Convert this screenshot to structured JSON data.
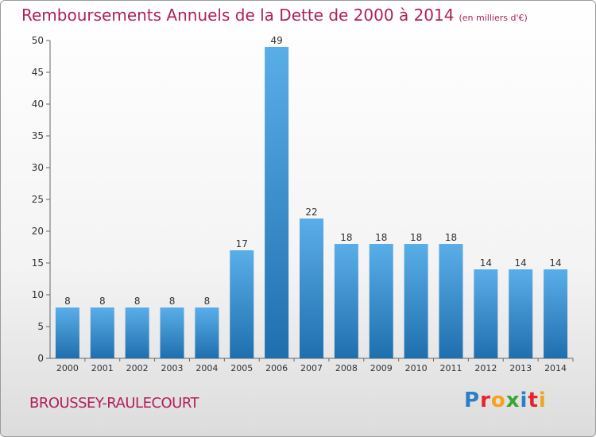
{
  "page": {
    "title": "Remboursements Annuels de la Dette de 2000 à 2014",
    "subtitle": "(en milliers d'€)",
    "commune": "BROUSSEY-RAULECOURT",
    "logo": {
      "text": "Proxiti",
      "letter_colors": [
        "#2b7fc4",
        "#e8242a",
        "#f6a21a",
        "#3aa535",
        "#2b7fc4",
        "#e8242a",
        "#f6a21a"
      ]
    },
    "colors": {
      "title": "#b01f5a",
      "bar_top": "#5aaee8",
      "bar_bottom": "#1f6fae"
    }
  },
  "chart_data": {
    "type": "bar",
    "title": "Remboursements Annuels de la Dette de 2000 à 2014",
    "subtitle": "(en milliers d'€)",
    "categories": [
      "2000",
      "2001",
      "2002",
      "2003",
      "2004",
      "2005",
      "2006",
      "2007",
      "2008",
      "2009",
      "2010",
      "2011",
      "2012",
      "2013",
      "2014"
    ],
    "values": [
      8,
      8,
      8,
      8,
      8,
      17,
      49,
      22,
      18,
      18,
      18,
      18,
      14,
      14,
      14
    ],
    "data_labels": [
      "8",
      "8",
      "8",
      "8",
      "8",
      "17",
      "49",
      "22",
      "18",
      "18",
      "18",
      "18",
      "14",
      "14",
      "14"
    ],
    "yticks": [
      0,
      5,
      10,
      15,
      20,
      25,
      30,
      35,
      40,
      45,
      50
    ],
    "ylim": [
      0,
      50
    ],
    "grid": false,
    "legend": "none"
  }
}
